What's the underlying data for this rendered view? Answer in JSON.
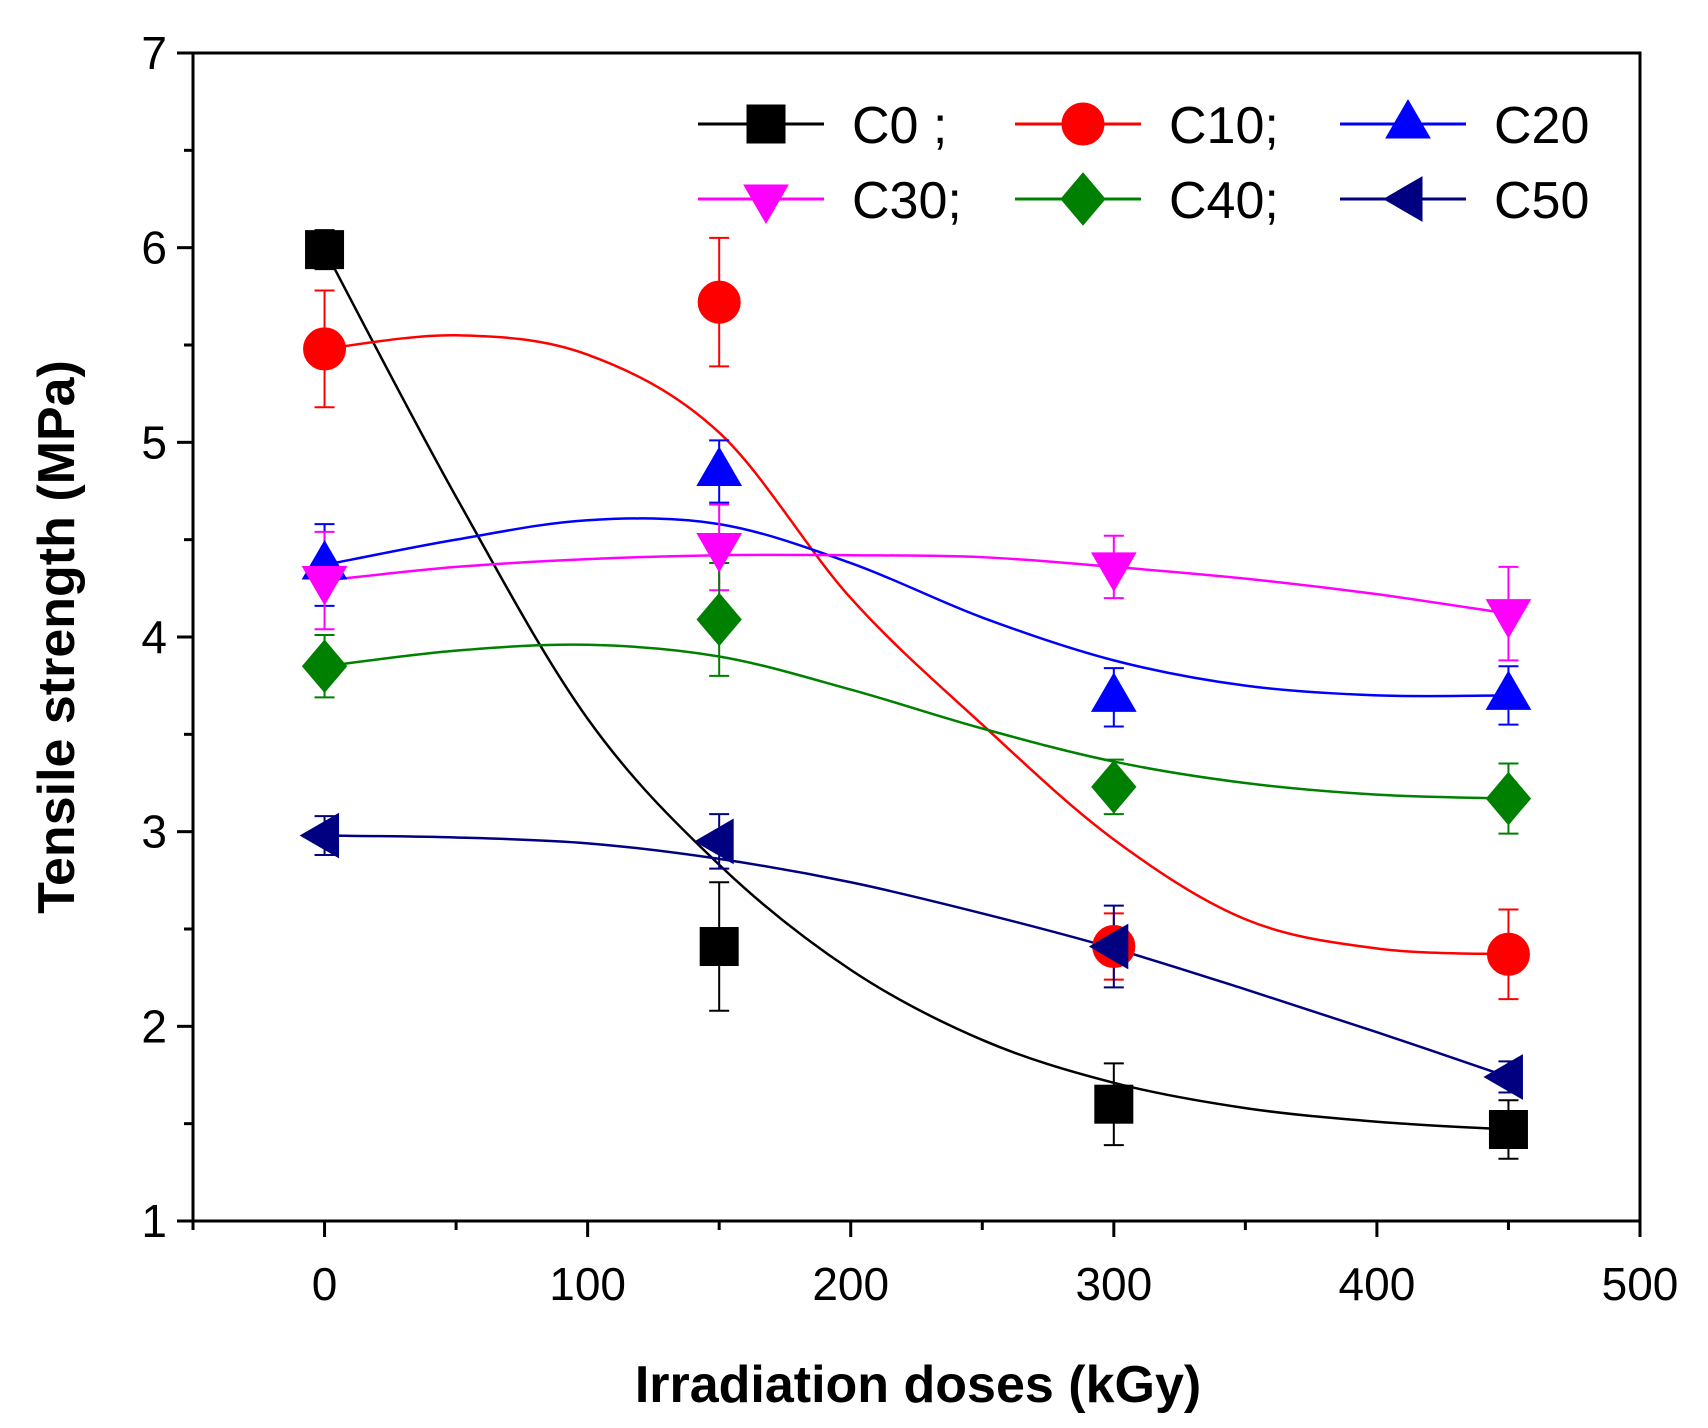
{
  "chart_data": {
    "type": "scatter",
    "title": "",
    "xlabel": "Irradiation doses (kGy)",
    "ylabel": "Tensile strength (MPa)",
    "xlim": [
      -50,
      500
    ],
    "ylim": [
      1,
      7
    ],
    "x_ticks": [
      0,
      100,
      200,
      300,
      400,
      500
    ],
    "y_ticks": [
      1,
      2,
      3,
      4,
      5,
      6,
      7
    ],
    "x_tick_labels": [
      "0",
      "100",
      "200",
      "300",
      "400",
      "500"
    ],
    "y_tick_labels": [
      "1",
      "2",
      "3",
      "4",
      "5",
      "6",
      "7"
    ],
    "legend_position": "top-right",
    "series": [
      {
        "name": "C0",
        "legend_label": "C0 ;",
        "color": "#000000",
        "marker": "square",
        "x": [
          0,
          150,
          300,
          450
        ],
        "y": [
          5.99,
          2.41,
          1.6,
          1.47
        ],
        "err": [
          0.1,
          0.33,
          0.21,
          0.15
        ],
        "fit_x": [
          0,
          50,
          100,
          150,
          200,
          250,
          300,
          350,
          400,
          450
        ],
        "fit_y": [
          5.99,
          4.72,
          3.58,
          2.83,
          2.29,
          1.93,
          1.71,
          1.58,
          1.51,
          1.47
        ]
      },
      {
        "name": "C10",
        "legend_label": "C10;",
        "color": "#ff0000",
        "marker": "circle",
        "x": [
          0,
          150,
          300,
          450
        ],
        "y": [
          5.48,
          5.72,
          2.41,
          2.37
        ],
        "err": [
          0.3,
          0.33,
          0.17,
          0.23
        ],
        "fit_x": [
          0,
          50,
          100,
          150,
          200,
          250,
          300,
          350,
          400,
          450
        ],
        "fit_y": [
          5.48,
          5.55,
          5.45,
          5.05,
          4.2,
          3.55,
          2.96,
          2.55,
          2.4,
          2.37
        ]
      },
      {
        "name": "C20",
        "legend_label": "C20",
        "color": "#0000ff",
        "marker": "triangle-up",
        "x": [
          0,
          150,
          300,
          450
        ],
        "y": [
          4.37,
          4.85,
          3.69,
          3.7
        ],
        "err": [
          0.21,
          0.16,
          0.15,
          0.15
        ],
        "fit_x": [
          0,
          50,
          100,
          150,
          200,
          250,
          300,
          350,
          400,
          450
        ],
        "fit_y": [
          4.37,
          4.5,
          4.6,
          4.58,
          4.38,
          4.1,
          3.88,
          3.75,
          3.7,
          3.7
        ]
      },
      {
        "name": "C30",
        "legend_label": "C30;",
        "color": "#ff00ff",
        "marker": "triangle-down",
        "x": [
          0,
          150,
          300,
          450
        ],
        "y": [
          4.29,
          4.46,
          4.36,
          4.12
        ],
        "err": [
          0.25,
          0.22,
          0.16,
          0.24
        ],
        "fit_x": [
          0,
          50,
          100,
          150,
          200,
          250,
          300,
          350,
          400,
          450
        ],
        "fit_y": [
          4.29,
          4.36,
          4.4,
          4.42,
          4.42,
          4.41,
          4.36,
          4.3,
          4.22,
          4.12
        ]
      },
      {
        "name": "C40",
        "legend_label": "C40;",
        "color": "#008000",
        "marker": "diamond",
        "x": [
          0,
          150,
          300,
          450
        ],
        "y": [
          3.85,
          4.09,
          3.23,
          3.17
        ],
        "err": [
          0.16,
          0.29,
          0.14,
          0.18
        ],
        "fit_x": [
          0,
          50,
          100,
          150,
          200,
          250,
          300,
          350,
          400,
          450
        ],
        "fit_y": [
          3.85,
          3.93,
          3.96,
          3.9,
          3.73,
          3.53,
          3.36,
          3.25,
          3.19,
          3.17
        ]
      },
      {
        "name": "C50",
        "legend_label": "C50",
        "color": "#000080",
        "marker": "triangle-left",
        "x": [
          0,
          150,
          300,
          450
        ],
        "y": [
          2.98,
          2.95,
          2.41,
          1.74
        ],
        "err": [
          0.1,
          0.14,
          0.21,
          0.08
        ],
        "fit_x": [
          0,
          50,
          100,
          150,
          200,
          250,
          300,
          350,
          400,
          450
        ],
        "fit_y": [
          2.98,
          2.97,
          2.94,
          2.86,
          2.74,
          2.58,
          2.4,
          2.19,
          1.97,
          1.74
        ]
      }
    ]
  }
}
